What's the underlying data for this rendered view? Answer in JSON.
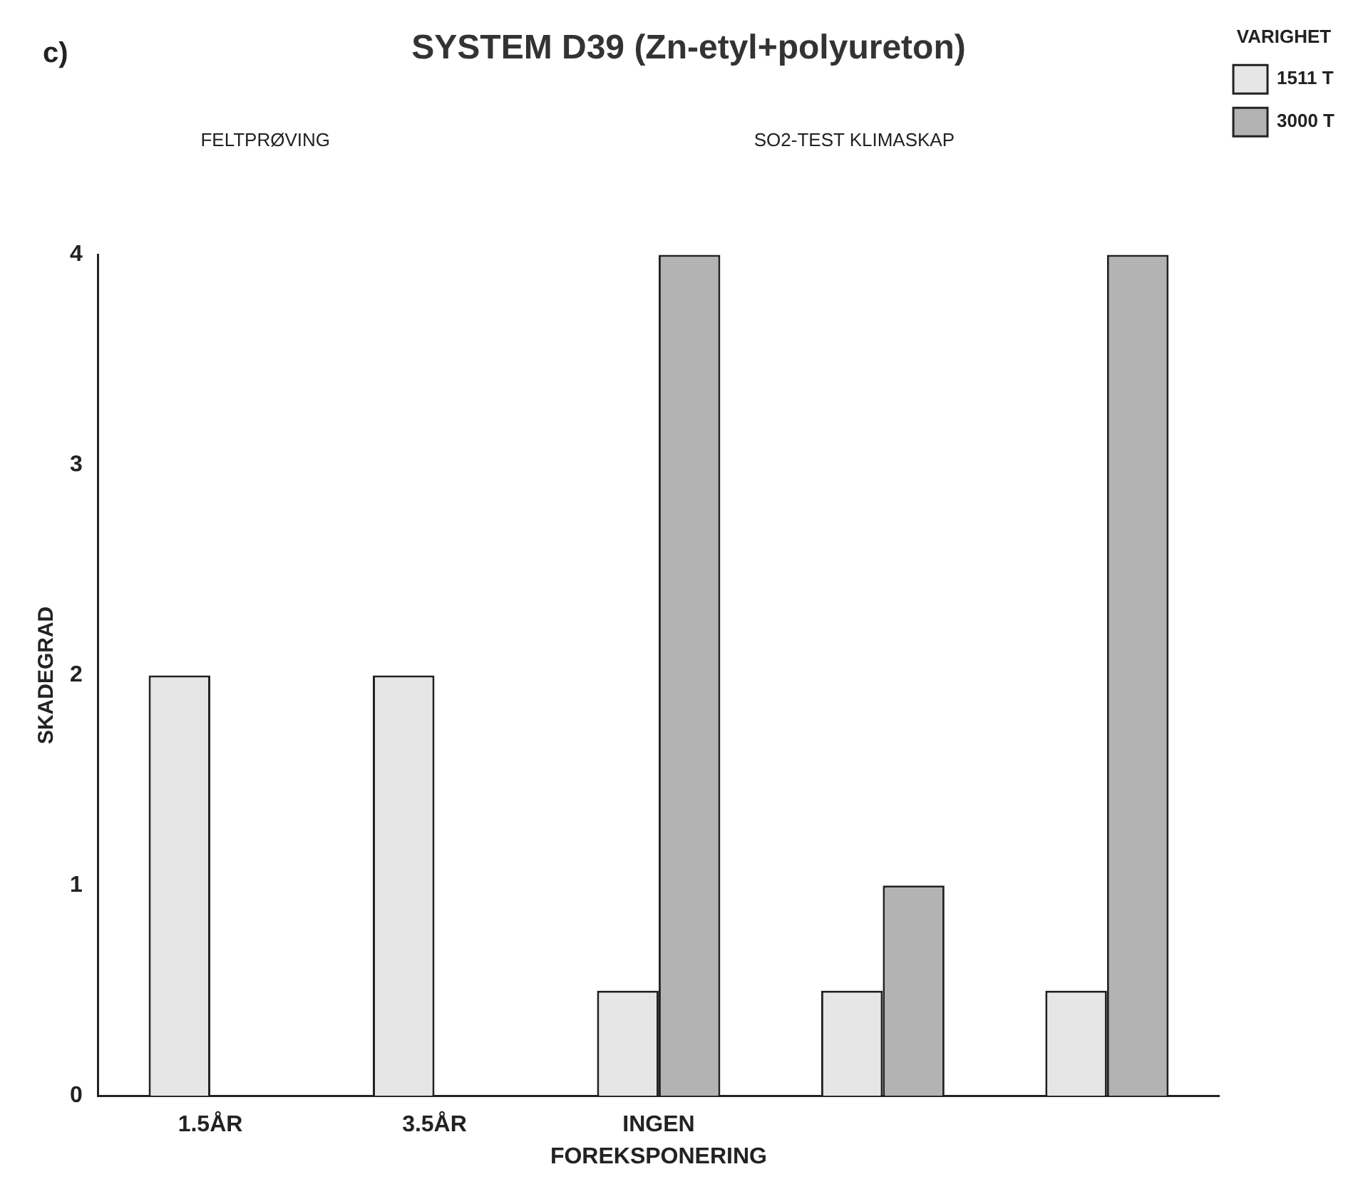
{
  "chart_data": {
    "type": "bar",
    "title": "SYSTEM D39 (Zn-etyl+polyureton)",
    "xlabel": "FOREKSPONERING",
    "ylabel": "SKADEGRAD",
    "legend_title": "VARIGHET",
    "legend": "right",
    "annotations": [
      "c)",
      "FELTPRØVING",
      "SO2-TEST KLIMASKAP"
    ],
    "categories": [
      "1.5ÅR",
      "3.5ÅR",
      "INGEN",
      null,
      null
    ],
    "series": [
      {
        "name": "1511 T",
        "color": "#e6e6e6",
        "values": [
          2,
          2,
          0.5,
          0.5,
          0.5
        ]
      },
      {
        "name": "3000 T",
        "color": "#b3b3b3",
        "values": [
          null,
          null,
          4,
          1,
          4
        ]
      }
    ],
    "ylim": [
      0,
      4
    ],
    "yticks": [
      0,
      1,
      2,
      3,
      4
    ],
    "grid": false
  }
}
